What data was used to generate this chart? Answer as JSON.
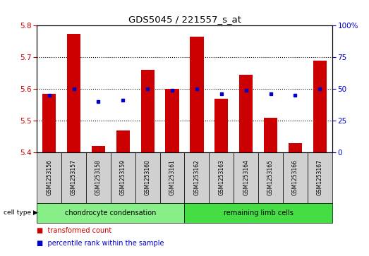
{
  "title": "GDS5045 / 221557_s_at",
  "samples": [
    "GSM1253156",
    "GSM1253157",
    "GSM1253158",
    "GSM1253159",
    "GSM1253160",
    "GSM1253161",
    "GSM1253162",
    "GSM1253163",
    "GSM1253164",
    "GSM1253165",
    "GSM1253166",
    "GSM1253167"
  ],
  "bar_values": [
    5.585,
    5.775,
    5.42,
    5.47,
    5.66,
    5.6,
    5.765,
    5.57,
    5.645,
    5.51,
    5.43,
    5.69
  ],
  "percentile_values": [
    45,
    50,
    40,
    41,
    50,
    49,
    50,
    46,
    49,
    46,
    45,
    50
  ],
  "bar_bottom": 5.4,
  "ylim_left": [
    5.4,
    5.8
  ],
  "ylim_right": [
    0,
    100
  ],
  "yticks_left": [
    5.4,
    5.5,
    5.6,
    5.7,
    5.8
  ],
  "yticks_right": [
    0,
    25,
    50,
    75,
    100
  ],
  "ytick_labels_right": [
    "0",
    "25",
    "50",
    "75",
    "100%"
  ],
  "bar_color": "#cc0000",
  "dot_color": "#0000cc",
  "grid_color": "#000000",
  "bg_color": "#ffffff",
  "cell_type_groups": [
    {
      "label": "chondrocyte condensation",
      "start": 0,
      "end": 5,
      "color": "#88ee88"
    },
    {
      "label": "remaining limb cells",
      "start": 6,
      "end": 11,
      "color": "#44dd44"
    }
  ],
  "cell_type_label": "cell type",
  "legend_bar_label": "transformed count",
  "legend_dot_label": "percentile rank within the sample",
  "left_tick_color": "#cc0000",
  "right_tick_color": "#0000cc",
  "sample_box_color": "#d0d0d0"
}
